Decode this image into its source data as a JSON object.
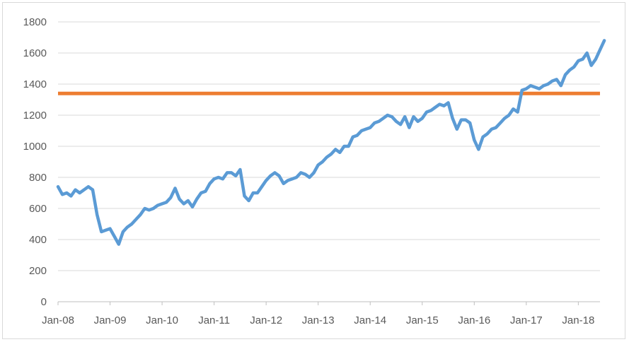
{
  "chart_data": {
    "type": "line",
    "title": "",
    "xlabel": "",
    "ylabel": "",
    "ylim": [
      0,
      1800
    ],
    "yticks": [
      0,
      200,
      400,
      600,
      800,
      1000,
      1200,
      1400,
      1600,
      1800
    ],
    "xticks": [
      "Jan-08",
      "Jan-09",
      "Jan-10",
      "Jan-11",
      "Jan-12",
      "Jan-13",
      "Jan-14",
      "Jan-15",
      "Jan-16",
      "Jan-17",
      "Jan-18"
    ],
    "x_range": [
      "2008-01",
      "2018-06"
    ],
    "grid": "horizontal",
    "legend": "none",
    "colors": {
      "series": "#5b9bd5",
      "reference": "#ed7d31",
      "grid": "#d9d9d9",
      "axis": "#bfbfbf",
      "text": "#595959"
    },
    "series": [
      {
        "points": [
          [
            "2008-01",
            740
          ],
          [
            "2008-02",
            690
          ],
          [
            "2008-03",
            700
          ],
          [
            "2008-04",
            680
          ],
          [
            "2008-05",
            720
          ],
          [
            "2008-06",
            700
          ],
          [
            "2008-07",
            720
          ],
          [
            "2008-08",
            740
          ],
          [
            "2008-09",
            720
          ],
          [
            "2008-10",
            560
          ],
          [
            "2008-11",
            450
          ],
          [
            "2008-12",
            460
          ],
          [
            "2009-01",
            470
          ],
          [
            "2009-02",
            420
          ],
          [
            "2009-03",
            370
          ],
          [
            "2009-04",
            450
          ],
          [
            "2009-05",
            480
          ],
          [
            "2009-06",
            500
          ],
          [
            "2009-07",
            530
          ],
          [
            "2009-08",
            560
          ],
          [
            "2009-09",
            600
          ],
          [
            "2009-10",
            590
          ],
          [
            "2009-11",
            600
          ],
          [
            "2009-12",
            620
          ],
          [
            "2010-01",
            630
          ],
          [
            "2010-02",
            640
          ],
          [
            "2010-03",
            670
          ],
          [
            "2010-04",
            730
          ],
          [
            "2010-05",
            660
          ],
          [
            "2010-06",
            630
          ],
          [
            "2010-07",
            650
          ],
          [
            "2010-08",
            610
          ],
          [
            "2010-09",
            660
          ],
          [
            "2010-10",
            700
          ],
          [
            "2010-11",
            710
          ],
          [
            "2010-12",
            760
          ],
          [
            "2011-01",
            790
          ],
          [
            "2011-02",
            800
          ],
          [
            "2011-03",
            790
          ],
          [
            "2011-04",
            830
          ],
          [
            "2011-05",
            830
          ],
          [
            "2011-06",
            810
          ],
          [
            "2011-07",
            850
          ],
          [
            "2011-08",
            680
          ],
          [
            "2011-09",
            650
          ],
          [
            "2011-10",
            700
          ],
          [
            "2011-11",
            700
          ],
          [
            "2011-12",
            740
          ],
          [
            "2012-01",
            780
          ],
          [
            "2012-02",
            810
          ],
          [
            "2012-03",
            830
          ],
          [
            "2012-04",
            810
          ],
          [
            "2012-05",
            760
          ],
          [
            "2012-06",
            780
          ],
          [
            "2012-07",
            790
          ],
          [
            "2012-08",
            800
          ],
          [
            "2012-09",
            830
          ],
          [
            "2012-10",
            820
          ],
          [
            "2012-11",
            800
          ],
          [
            "2012-12",
            830
          ],
          [
            "2013-01",
            880
          ],
          [
            "2013-02",
            900
          ],
          [
            "2013-03",
            930
          ],
          [
            "2013-04",
            950
          ],
          [
            "2013-05",
            980
          ],
          [
            "2013-06",
            960
          ],
          [
            "2013-07",
            1000
          ],
          [
            "2013-08",
            1000
          ],
          [
            "2013-09",
            1060
          ],
          [
            "2013-10",
            1070
          ],
          [
            "2013-11",
            1100
          ],
          [
            "2013-12",
            1110
          ],
          [
            "2014-01",
            1120
          ],
          [
            "2014-02",
            1150
          ],
          [
            "2014-03",
            1160
          ],
          [
            "2014-04",
            1180
          ],
          [
            "2014-05",
            1200
          ],
          [
            "2014-06",
            1190
          ],
          [
            "2014-07",
            1160
          ],
          [
            "2014-08",
            1140
          ],
          [
            "2014-09",
            1190
          ],
          [
            "2014-10",
            1120
          ],
          [
            "2014-11",
            1190
          ],
          [
            "2014-12",
            1160
          ],
          [
            "2015-01",
            1180
          ],
          [
            "2015-02",
            1220
          ],
          [
            "2015-03",
            1230
          ],
          [
            "2015-04",
            1250
          ],
          [
            "2015-05",
            1270
          ],
          [
            "2015-06",
            1260
          ],
          [
            "2015-07",
            1280
          ],
          [
            "2015-08",
            1180
          ],
          [
            "2015-09",
            1110
          ],
          [
            "2015-10",
            1170
          ],
          [
            "2015-11",
            1170
          ],
          [
            "2015-12",
            1150
          ],
          [
            "2016-01",
            1040
          ],
          [
            "2016-02",
            980
          ],
          [
            "2016-03",
            1060
          ],
          [
            "2016-04",
            1080
          ],
          [
            "2016-05",
            1110
          ],
          [
            "2016-06",
            1120
          ],
          [
            "2016-07",
            1150
          ],
          [
            "2016-08",
            1180
          ],
          [
            "2016-09",
            1200
          ],
          [
            "2016-10",
            1240
          ],
          [
            "2016-11",
            1220
          ],
          [
            "2016-12",
            1360
          ],
          [
            "2017-01",
            1370
          ],
          [
            "2017-02",
            1390
          ],
          [
            "2017-03",
            1380
          ],
          [
            "2017-04",
            1370
          ],
          [
            "2017-05",
            1390
          ],
          [
            "2017-06",
            1400
          ],
          [
            "2017-07",
            1420
          ],
          [
            "2017-08",
            1430
          ],
          [
            "2017-09",
            1390
          ],
          [
            "2017-10",
            1460
          ],
          [
            "2017-11",
            1490
          ],
          [
            "2017-12",
            1510
          ],
          [
            "2018-01",
            1550
          ],
          [
            "2018-02",
            1560
          ],
          [
            "2018-03",
            1600
          ],
          [
            "2018-04",
            1520
          ],
          [
            "2018-05",
            1560
          ],
          [
            "2018-06",
            1620
          ],
          [
            "2018-07",
            1680
          ]
        ]
      }
    ],
    "reference_lines": [
      {
        "y": 1340
      }
    ]
  }
}
